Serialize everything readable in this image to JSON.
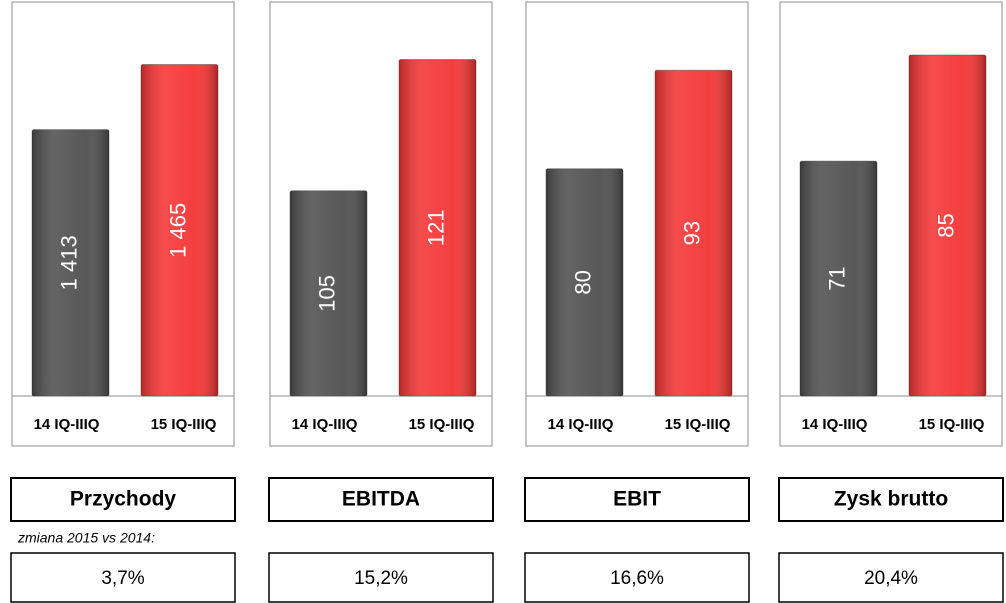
{
  "chart_data": [
    {
      "type": "bar",
      "title": "Przychody",
      "categories": [
        "14 IQ-IIIQ",
        "15 IQ-IIIQ"
      ],
      "values": [
        1413,
        1465
      ],
      "value_labels": [
        "1 413",
        "1 465"
      ],
      "colors": [
        "#4f4f4f",
        "#f43434"
      ],
      "ylim": [
        1200,
        1515
      ],
      "change": "3,7%"
    },
    {
      "type": "bar",
      "title": "EBITDA",
      "categories": [
        "14 IQ-IIIQ",
        "15 IQ-IIIQ"
      ],
      "values": [
        105,
        121
      ],
      "colors": [
        "#4f4f4f",
        "#f43434"
      ],
      "ylim": [
        80,
        128
      ],
      "change": "15,2%"
    },
    {
      "type": "bar",
      "title": "EBIT",
      "categories": [
        "14 IQ-IIIQ",
        "15 IQ-IIIQ"
      ],
      "values": [
        80,
        93
      ],
      "colors": [
        "#4f4f4f",
        "#f43434"
      ],
      "ylim": [
        50,
        102
      ],
      "change": "16,6%"
    },
    {
      "type": "bar",
      "title": "Zysk brutto",
      "categories": [
        "14 IQ-IIIQ",
        "15 IQ-IIIQ"
      ],
      "values": [
        71,
        85
      ],
      "colors": [
        "#4f4f4f",
        "#f43434"
      ],
      "ylim": [
        40,
        92
      ],
      "change": "20,4%"
    }
  ],
  "note": "zmiana 2015 vs 2014:"
}
